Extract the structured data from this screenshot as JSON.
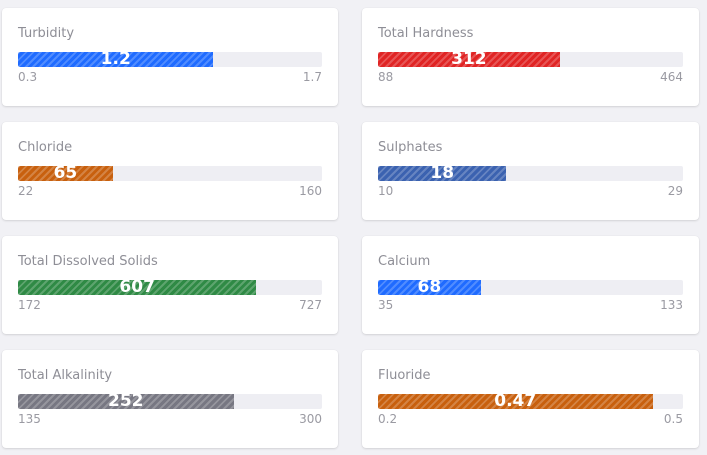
{
  "cards": [
    {
      "label": "Turbidity",
      "value": "1.2",
      "min": "0.3",
      "max": "1.7",
      "fraction": 0.643,
      "color": "#1f6bff"
    },
    {
      "label": "Total Hardness",
      "value": "312",
      "min": "88",
      "max": "464",
      "fraction": 0.596,
      "color": "#e02424"
    },
    {
      "label": "Chloride",
      "value": "65",
      "min": "22",
      "max": "160",
      "fraction": 0.312,
      "color": "#c8600e"
    },
    {
      "label": "Sulphates",
      "value": "18",
      "min": "10",
      "max": "29",
      "fraction": 0.421,
      "color": "#3b62b0"
    },
    {
      "label": "Total Dissolved Solids",
      "value": "607",
      "min": "172",
      "max": "727",
      "fraction": 0.784,
      "color": "#2f8a45"
    },
    {
      "label": "Calcium",
      "value": "68",
      "min": "35",
      "max": "133",
      "fraction": 0.337,
      "color": "#1f6bff"
    },
    {
      "label": "Total Alkalinity",
      "value": "252",
      "min": "135",
      "max": "300",
      "fraction": 0.709,
      "color": "#777782"
    },
    {
      "label": "Fluoride",
      "value": "0.47",
      "min": "0.2",
      "max": "0.5",
      "fraction": 0.9,
      "color": "#c8600e"
    }
  ]
}
